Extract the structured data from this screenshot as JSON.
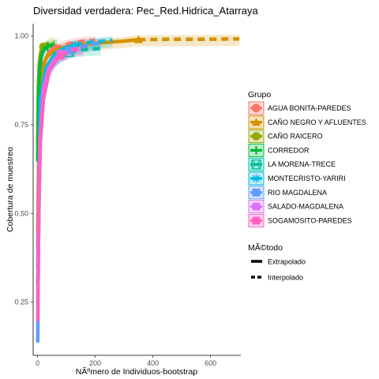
{
  "chart_data": {
    "type": "line",
    "title": "Diversidad verdadera: Pec_Red.Hidrica_Atarraya",
    "xlabel": "NÃºmero de Individuos-bootstrap",
    "ylabel": "Cobertura de muestreo",
    "xlim": [
      -15,
      705
    ],
    "ylim": [
      0.1,
      1.035
    ],
    "xticks": [
      0,
      200,
      400,
      600
    ],
    "yticks": [
      0.25,
      0.5,
      0.75,
      1.0
    ],
    "ytick_labels": [
      "0.25",
      "0.50",
      "0.75",
      "1.00"
    ],
    "grid": false,
    "legend": {
      "group_title": "Grupo",
      "method_title": "MÃ©todo",
      "methods": [
        "Extrapolado",
        "Interpolado"
      ],
      "placement": "right"
    },
    "series": [
      {
        "name": "AGUA BONITA-PAREDES",
        "color": "#F8766D",
        "shape": "circle",
        "interp": [
          [
            1,
            0.4
          ],
          [
            5,
            0.76
          ],
          [
            10,
            0.86
          ],
          [
            20,
            0.92
          ],
          [
            40,
            0.955
          ],
          [
            60,
            0.966
          ]
        ],
        "extrap": [
          [
            60,
            0.966
          ],
          [
            90,
            0.975
          ],
          [
            120,
            0.981
          ],
          [
            160,
            0.986
          ],
          [
            200,
            0.988
          ]
        ]
      },
      {
        "name": "CAÑO NEGRO Y AFLUENTES",
        "color": "#D39200",
        "shape": "triangle",
        "interp": [
          [
            1,
            0.45
          ],
          [
            10,
            0.88
          ],
          [
            30,
            0.94
          ],
          [
            60,
            0.96
          ],
          [
            100,
            0.97
          ],
          [
            150,
            0.976
          ],
          [
            200,
            0.98
          ],
          [
            250,
            0.983
          ],
          [
            300,
            0.986
          ],
          [
            350,
            0.99
          ]
        ],
        "extrap": [
          [
            350,
            0.99
          ],
          [
            450,
            0.991
          ],
          [
            550,
            0.991
          ],
          [
            700,
            0.992
          ]
        ]
      },
      {
        "name": "CAÑO RAICERO",
        "color": "#93AA00",
        "shape": "octagon",
        "interp": [
          [
            1,
            0.7
          ],
          [
            3,
            0.86
          ],
          [
            6,
            0.92
          ],
          [
            10,
            0.95
          ],
          [
            15,
            0.965
          ],
          [
            20,
            0.97
          ]
        ],
        "extrap": [
          [
            20,
            0.97
          ],
          [
            30,
            0.977
          ],
          [
            45,
            0.982
          ],
          [
            60,
            0.984
          ]
        ]
      },
      {
        "name": "CORREDOR",
        "color": "#00BA38",
        "shape": "plus",
        "interp": [
          [
            1,
            0.65
          ],
          [
            4,
            0.85
          ],
          [
            8,
            0.91
          ],
          [
            15,
            0.95
          ],
          [
            25,
            0.965
          ],
          [
            35,
            0.97
          ]
        ],
        "extrap": [
          [
            35,
            0.97
          ],
          [
            50,
            0.976
          ],
          [
            70,
            0.98
          ]
        ]
      },
      {
        "name": "LA MORENA-TRECE",
        "color": "#00C19F",
        "shape": "squarecross",
        "interp": [
          [
            1,
            0.3
          ],
          [
            10,
            0.78
          ],
          [
            25,
            0.88
          ],
          [
            50,
            0.925
          ],
          [
            80,
            0.945
          ],
          [
            110,
            0.955
          ]
        ],
        "extrap": [
          [
            110,
            0.955
          ],
          [
            160,
            0.962
          ],
          [
            220,
            0.965
          ]
        ]
      },
      {
        "name": "MONTECRISTO-YARIRI",
        "color": "#00B9E3",
        "shape": "asterisk",
        "interp": [
          [
            1,
            0.35
          ],
          [
            10,
            0.82
          ],
          [
            30,
            0.91
          ],
          [
            60,
            0.95
          ],
          [
            90,
            0.965
          ],
          [
            130,
            0.975
          ]
        ],
        "extrap": [
          [
            130,
            0.975
          ],
          [
            180,
            0.982
          ],
          [
            230,
            0.986
          ],
          [
            260,
            0.988
          ]
        ]
      },
      {
        "name": "RIO MAGDALENA",
        "color": "#619CFF",
        "shape": "square",
        "interp": [
          [
            1,
            0.14
          ],
          [
            3,
            0.4
          ],
          [
            6,
            0.58
          ],
          [
            10,
            0.7
          ],
          [
            20,
            0.82
          ],
          [
            40,
            0.9
          ],
          [
            70,
            0.94
          ],
          [
            110,
            0.96
          ]
        ],
        "extrap": [
          [
            110,
            0.96
          ],
          [
            160,
            0.972
          ],
          [
            200,
            0.978
          ],
          [
            220,
            0.98
          ]
        ]
      },
      {
        "name": "SALADO-MAGDALENA",
        "color": "#DB72FB",
        "shape": "square",
        "interp": [
          [
            1,
            0.25
          ],
          [
            8,
            0.7
          ],
          [
            20,
            0.85
          ],
          [
            40,
            0.91
          ],
          [
            60,
            0.935
          ],
          [
            80,
            0.95
          ]
        ],
        "extrap": [
          [
            80,
            0.95
          ],
          [
            120,
            0.962
          ],
          [
            160,
            0.968
          ]
        ]
      },
      {
        "name": "SOGAMOSITO-PAREDES",
        "color": "#FF61C3",
        "shape": "square",
        "interp": [
          [
            1,
            0.2
          ],
          [
            5,
            0.55
          ],
          [
            10,
            0.7
          ],
          [
            20,
            0.82
          ],
          [
            40,
            0.9
          ],
          [
            60,
            0.93
          ],
          [
            80,
            0.945
          ]
        ],
        "extrap": [
          [
            80,
            0.945
          ],
          [
            120,
            0.96
          ],
          [
            160,
            0.965
          ]
        ]
      }
    ]
  }
}
